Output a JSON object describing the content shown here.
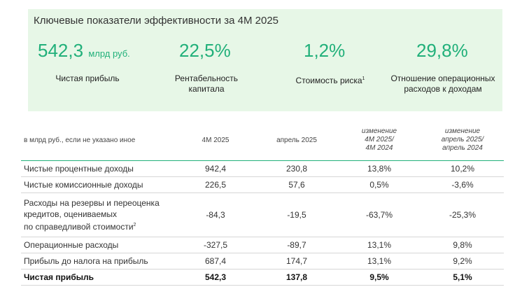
{
  "panel": {
    "title": "Ключевые показатели эффективности за 4М 2025",
    "kpis": [
      {
        "value": "542,3",
        "unit": "млрд руб.",
        "label": "Чистая прибыль"
      },
      {
        "value": "22,5%",
        "unit": "",
        "label": "Рентабельность\nкапитала"
      },
      {
        "value": "1,2%",
        "unit": "",
        "label": "Стоимость риска",
        "footnote": "1"
      },
      {
        "value": "29,8%",
        "unit": "",
        "label": "Отношение операционных\nрасходов к доходам"
      }
    ],
    "accent_color": "#21b07a",
    "background_color": "#e7f7e7"
  },
  "table": {
    "headers": {
      "note": "в млрд руб., если не указано иное",
      "col1": "4М 2025",
      "col2": "апрель 2025",
      "col3": "изменение\n4М 2025/\n4М 2024",
      "col4": "изменение\nапрель 2025/\nапрель 2024"
    },
    "rows": [
      {
        "name": "Чистые процентные доходы",
        "v1": "942,4",
        "v2": "230,8",
        "v3": "13,8%",
        "v4": "10,2%"
      },
      {
        "name": "Чистые комиссионные доходы",
        "v1": "226,5",
        "v2": "57,6",
        "v3": "0,5%",
        "v4": "-3,6%"
      },
      {
        "name": "Расходы на резервы и переоценка\nкредитов, оцениваемых\nпо справедливой стоимости",
        "footnote": "2",
        "v1": "-84,3",
        "v2": "-19,5",
        "v3": "-63,7%",
        "v4": "-25,3%"
      },
      {
        "name": "Операционные расходы",
        "v1": "-327,5",
        "v2": "-89,7",
        "v3": "13,1%",
        "v4": "9,8%"
      },
      {
        "name": "Прибыль до налога на прибыль",
        "v1": "687,4",
        "v2": "174,7",
        "v3": "13,1%",
        "v4": "9,2%"
      },
      {
        "name": "Чистая прибыль",
        "v1": "542,3",
        "v2": "137,8",
        "v3": "9,5%",
        "v4": "5,1%"
      }
    ]
  }
}
